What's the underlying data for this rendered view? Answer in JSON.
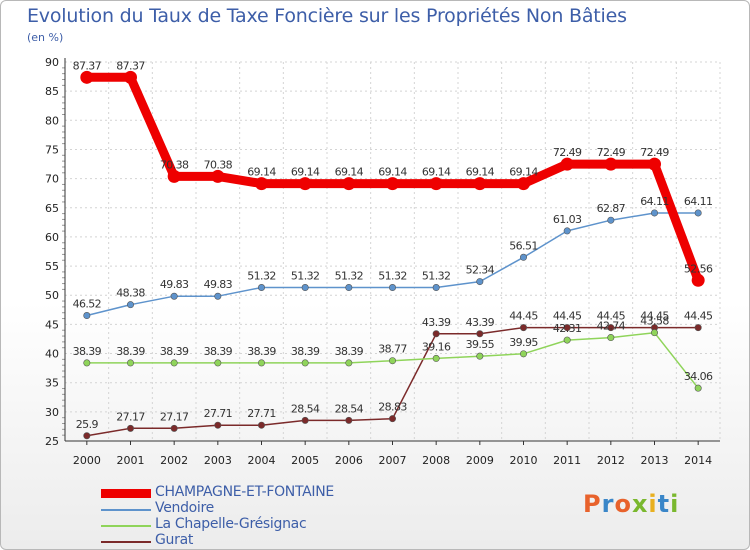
{
  "title": "Evolution du Taux de Taxe Foncière sur les Propriétés Non Bâties",
  "unit_label": "(en %)",
  "logo": {
    "text": "Proxiti",
    "colors": [
      "#e8622c",
      "#3a86c8",
      "#e8622c",
      "#7ab82e",
      "#e8b020",
      "#3a86c8",
      "#7ab82e"
    ]
  },
  "chart_data": {
    "type": "line",
    "x": [
      "2000",
      "2001",
      "2002",
      "2003",
      "2004",
      "2005",
      "2006",
      "2007",
      "2008",
      "2009",
      "2010",
      "2011",
      "2012",
      "2013",
      "2014"
    ],
    "ylim": [
      25,
      90
    ],
    "yticks": [
      25,
      30,
      35,
      40,
      45,
      50,
      55,
      60,
      65,
      70,
      75,
      80,
      85,
      90
    ],
    "grid": true,
    "legend_position": "bottom",
    "series": [
      {
        "name": "CHAMPAGNE-ET-FONTAINE",
        "color": "#ee0000",
        "width": 9,
        "values": [
          87.37,
          87.37,
          70.38,
          70.38,
          69.14,
          69.14,
          69.14,
          69.14,
          69.14,
          69.14,
          69.14,
          72.49,
          72.49,
          72.49,
          52.56
        ],
        "labels": [
          "87.37",
          "87.37",
          "70.38",
          "70.38",
          "69.14",
          "69.14",
          "69.14",
          "69.14",
          "69.14",
          "69.14",
          "69.14",
          "72.49",
          "72.49",
          "72.49",
          "52.56"
        ]
      },
      {
        "name": "Vendoire",
        "color": "#5e93cc",
        "width": 1.5,
        "values": [
          46.52,
          48.38,
          49.83,
          49.83,
          51.32,
          51.32,
          51.32,
          51.32,
          51.32,
          52.34,
          56.51,
          61.03,
          62.87,
          64.11,
          64.11
        ],
        "labels": [
          "46.52",
          "48.38",
          "49.83",
          "49.83",
          "51.32",
          "51.32",
          "51.32",
          "51.32",
          "51.32",
          "52.34",
          "56.51",
          "61.03",
          "62.87",
          "64.11",
          "64.11"
        ]
      },
      {
        "name": "La Chapelle-Grésignac",
        "color": "#8fd45a",
        "width": 1.5,
        "values": [
          38.39,
          38.39,
          38.39,
          38.39,
          38.39,
          38.39,
          38.39,
          38.77,
          39.16,
          39.55,
          39.95,
          42.31,
          42.74,
          43.58,
          34.06
        ],
        "labels": [
          "38.39",
          "38.39",
          "38.39",
          "38.39",
          "38.39",
          "38.39",
          "38.39",
          "38.77",
          "39.16",
          "39.55",
          "39.95",
          "42.31",
          "42.74",
          "43.58",
          "34.06"
        ]
      },
      {
        "name": "Gurat",
        "color": "#7b2a2a",
        "width": 1.5,
        "values": [
          25.9,
          27.17,
          27.17,
          27.71,
          27.71,
          28.54,
          28.54,
          28.83,
          43.39,
          43.39,
          44.45,
          44.45,
          44.45,
          44.45,
          44.45
        ],
        "labels": [
          "25.9",
          "27.17",
          "27.17",
          "27.71",
          "27.71",
          "28.54",
          "28.54",
          "28.83",
          "43.39",
          "43.39",
          "44.45",
          "44.45",
          "44.45",
          "44.45",
          "44.45"
        ]
      }
    ]
  }
}
